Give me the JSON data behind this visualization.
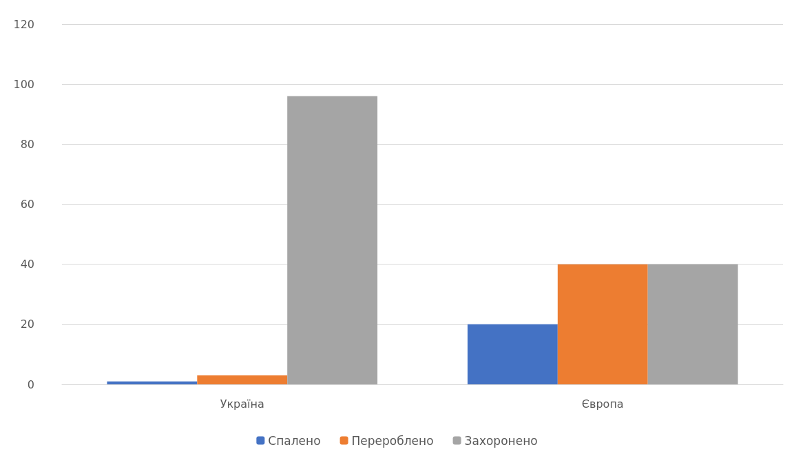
{
  "chart_data": {
    "type": "bar",
    "categories": [
      "Україна",
      "Європа"
    ],
    "series": [
      {
        "name": "Спалено",
        "color": "#4472c4",
        "values": [
          1,
          20
        ]
      },
      {
        "name": "Перероблено",
        "color": "#ed7d31",
        "values": [
          3,
          40
        ]
      },
      {
        "name": "Захоронено",
        "color": "#a5a5a5",
        "values": [
          96,
          40
        ]
      }
    ],
    "ylim": [
      0,
      120
    ],
    "yticks": [
      0,
      20,
      40,
      60,
      80,
      100,
      120
    ],
    "grid": "y",
    "legend": "bottom"
  }
}
